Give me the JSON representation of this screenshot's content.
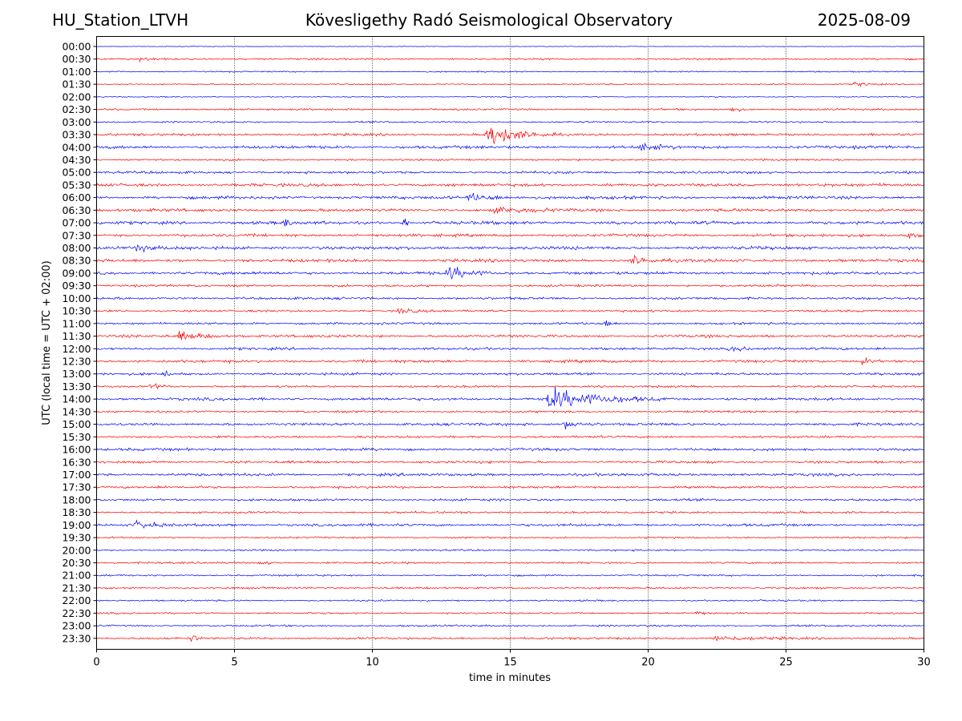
{
  "header": {
    "station": "HU_Station_LTVH",
    "title": "Kövesligethy Radó Seismological Observatory",
    "date": "2025-08-09"
  },
  "chart_data": {
    "type": "line",
    "title": "Kövesligethy Radó Seismological Observatory",
    "xlabel": "time in minutes",
    "ylabel": "UTC (local time = UTC + 02:00)",
    "xlim": [
      0,
      30
    ],
    "x_ticks": [
      "0",
      "5",
      "10",
      "15",
      "20",
      "25",
      "30"
    ],
    "grid": "vertical dotted lines at 5, 10, 15, 20, 25 minutes",
    "colors": {
      "full_hour": "#0000ff",
      "half_hour": "#ff0000",
      "grid": "#000000"
    },
    "rows": [
      "00:00",
      "00:30",
      "01:00",
      "01:30",
      "02:00",
      "02:30",
      "03:00",
      "03:30",
      "04:00",
      "04:30",
      "05:00",
      "05:30",
      "06:00",
      "06:30",
      "07:00",
      "07:30",
      "08:00",
      "08:30",
      "09:00",
      "09:30",
      "10:00",
      "10:30",
      "11:00",
      "11:30",
      "12:00",
      "12:30",
      "13:00",
      "13:30",
      "14:00",
      "14:30",
      "15:00",
      "15:30",
      "16:00",
      "16:30",
      "17:00",
      "17:30",
      "18:00",
      "18:30",
      "19:00",
      "19:30",
      "20:00",
      "20:30",
      "21:00",
      "21:30",
      "22:00",
      "22:30",
      "23:00",
      "23:30"
    ],
    "noise_level": [
      0.4,
      0.9,
      0.7,
      0.7,
      0.6,
      1.0,
      0.9,
      1.3,
      1.6,
      1.0,
      1.3,
      1.6,
      1.6,
      1.6,
      1.7,
      1.5,
      1.7,
      1.6,
      1.6,
      1.2,
      1.3,
      1.1,
      1.2,
      1.4,
      1.3,
      1.5,
      1.3,
      1.1,
      1.5,
      1.1,
      1.4,
      1.2,
      1.4,
      1.3,
      1.5,
      1.2,
      1.2,
      1.1,
      1.4,
      0.9,
      0.9,
      1.0,
      0.9,
      1.0,
      0.9,
      0.9,
      1.0,
      1.2
    ],
    "events": [
      {
        "row": "00:30",
        "t": 1.6,
        "amp": 2,
        "dur": 0.8
      },
      {
        "row": "01:30",
        "t": 27.5,
        "amp": 2.5,
        "dur": 1.6
      },
      {
        "row": "02:30",
        "t": 23.0,
        "amp": 3,
        "dur": 0.8
      },
      {
        "row": "03:30",
        "t": 14.2,
        "amp": 12,
        "dur": 2.5
      },
      {
        "row": "04:00",
        "t": 19.8,
        "amp": 4,
        "dur": 1.5
      },
      {
        "row": "06:00",
        "t": 13.5,
        "amp": 3,
        "dur": 3
      },
      {
        "row": "06:30",
        "t": 14.5,
        "amp": 3,
        "dur": 3
      },
      {
        "row": "07:00",
        "t": 6.9,
        "amp": 5,
        "dur": 0.3
      },
      {
        "row": "07:00",
        "t": 11.2,
        "amp": 6,
        "dur": 0.2
      },
      {
        "row": "07:30",
        "t": 29.5,
        "amp": 3,
        "dur": 1.0
      },
      {
        "row": "08:00",
        "t": 1.5,
        "amp": 4,
        "dur": 0.8
      },
      {
        "row": "08:30",
        "t": 19.5,
        "amp": 5,
        "dur": 1.0
      },
      {
        "row": "09:00",
        "t": 12.8,
        "amp": 7,
        "dur": 1.8
      },
      {
        "row": "10:30",
        "t": 11.0,
        "amp": 3,
        "dur": 1.2
      },
      {
        "row": "11:00",
        "t": 18.5,
        "amp": 3,
        "dur": 0.6
      },
      {
        "row": "11:30",
        "t": 3.0,
        "amp": 4,
        "dur": 2.5
      },
      {
        "row": "12:00",
        "t": 23.0,
        "amp": 2.5,
        "dur": 2.5
      },
      {
        "row": "12:30",
        "t": 27.8,
        "amp": 3.5,
        "dur": 1.0
      },
      {
        "row": "13:00",
        "t": 2.55,
        "amp": 5,
        "dur": 0.15
      },
      {
        "row": "13:30",
        "t": 2.0,
        "amp": 3,
        "dur": 1.2
      },
      {
        "row": "14:00",
        "t": 16.4,
        "amp": 11,
        "dur": 4.5
      },
      {
        "row": "15:00",
        "t": 17.0,
        "amp": 4,
        "dur": 1.5
      },
      {
        "row": "19:00",
        "t": 1.5,
        "amp": 5,
        "dur": 1.2
      },
      {
        "row": "20:30",
        "t": 6.0,
        "amp": 2.5,
        "dur": 0.8
      },
      {
        "row": "22:30",
        "t": 21.8,
        "amp": 2,
        "dur": 0.6
      },
      {
        "row": "23:30",
        "t": 3.5,
        "amp": 4,
        "dur": 0.3
      },
      {
        "row": "23:30",
        "t": 22.5,
        "amp": 2.5,
        "dur": 3
      }
    ]
  }
}
